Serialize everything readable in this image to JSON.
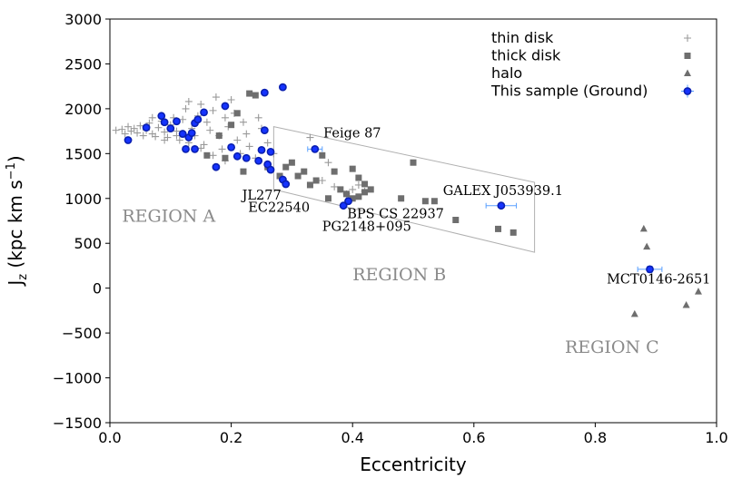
{
  "chart_data": {
    "type": "scatter",
    "xlabel": "Eccentricity",
    "ylabel": "J",
    "ylabel_sub": "z",
    "ylabel_units": " (kpc km s",
    "ylabel_exp": "−1",
    "ylabel_close": ")",
    "xlim": [
      0.0,
      1.0
    ],
    "ylim": [
      -1500,
      3000
    ],
    "xticks": [
      0.0,
      0.2,
      0.4,
      0.6,
      0.8,
      1.0
    ],
    "xtick_labels": [
      "0.0",
      "0.2",
      "0.4",
      "0.6",
      "0.8",
      "1.0"
    ],
    "yticks": [
      -1500,
      -1000,
      -500,
      0,
      500,
      1000,
      1500,
      2000,
      2500,
      3000
    ],
    "ytick_labels": [
      "−1500",
      "−1000",
      "−500",
      "0",
      "500",
      "1000",
      "1500",
      "2000",
      "2500",
      "3000"
    ],
    "grid": false,
    "legend_position": "top-right",
    "series": [
      {
        "name": "thin disk",
        "marker": "plus",
        "color": "#9a9a9a",
        "points": [
          [
            0.01,
            1760
          ],
          [
            0.02,
            1770
          ],
          [
            0.025,
            1720
          ],
          [
            0.03,
            1800
          ],
          [
            0.035,
            1750
          ],
          [
            0.04,
            1780
          ],
          [
            0.045,
            1730
          ],
          [
            0.05,
            1810
          ],
          [
            0.055,
            1700
          ],
          [
            0.06,
            1760
          ],
          [
            0.065,
            1840
          ],
          [
            0.07,
            1720
          ],
          [
            0.075,
            1690
          ],
          [
            0.08,
            1790
          ],
          [
            0.085,
            1860
          ],
          [
            0.09,
            1740
          ],
          [
            0.095,
            1680
          ],
          [
            0.1,
            1820
          ],
          [
            0.105,
            1900
          ],
          [
            0.11,
            1750
          ],
          [
            0.115,
            1650
          ],
          [
            0.12,
            1880
          ],
          [
            0.125,
            2000
          ],
          [
            0.13,
            2080
          ],
          [
            0.135,
            1780
          ],
          [
            0.14,
            1700
          ],
          [
            0.145,
            1920
          ],
          [
            0.15,
            2050
          ],
          [
            0.155,
            1600
          ],
          [
            0.16,
            1850
          ],
          [
            0.165,
            1760
          ],
          [
            0.17,
            1980
          ],
          [
            0.175,
            2130
          ],
          [
            0.18,
            1700
          ],
          [
            0.185,
            1550
          ],
          [
            0.19,
            1900
          ],
          [
            0.195,
            1800
          ],
          [
            0.2,
            2100
          ],
          [
            0.205,
            1950
          ],
          [
            0.21,
            1650
          ],
          [
            0.215,
            1500
          ],
          [
            0.22,
            1850
          ],
          [
            0.225,
            1720
          ],
          [
            0.23,
            1580
          ],
          [
            0.24,
            1450
          ],
          [
            0.245,
            1900
          ],
          [
            0.25,
            1780
          ],
          [
            0.26,
            1620
          ],
          [
            0.27,
            1500
          ],
          [
            0.11,
            1700
          ],
          [
            0.09,
            1650
          ],
          [
            0.07,
            1900
          ],
          [
            0.13,
            1620
          ],
          [
            0.15,
            1560
          ],
          [
            0.17,
            1480
          ],
          [
            0.19,
            1420
          ],
          [
            0.33,
            1680
          ],
          [
            0.35,
            1200
          ],
          [
            0.37,
            1130
          ],
          [
            0.4,
            1100
          ],
          [
            0.41,
            1150
          ],
          [
            0.36,
            1400
          ],
          [
            0.42,
            1080
          ],
          [
            0.39,
            1050
          ]
        ]
      },
      {
        "name": "thick disk",
        "marker": "square",
        "color": "#6e6e6e",
        "points": [
          [
            0.23,
            2170
          ],
          [
            0.24,
            2150
          ],
          [
            0.21,
            1950
          ],
          [
            0.2,
            1820
          ],
          [
            0.18,
            1700
          ],
          [
            0.16,
            1480
          ],
          [
            0.19,
            1450
          ],
          [
            0.22,
            1300
          ],
          [
            0.26,
            1350
          ],
          [
            0.28,
            1250
          ],
          [
            0.29,
            1350
          ],
          [
            0.3,
            1400
          ],
          [
            0.31,
            1250
          ],
          [
            0.32,
            1300
          ],
          [
            0.34,
            1200
          ],
          [
            0.35,
            1480
          ],
          [
            0.36,
            1000
          ],
          [
            0.38,
            1100
          ],
          [
            0.39,
            1050
          ],
          [
            0.4,
            1000
          ],
          [
            0.41,
            1020
          ],
          [
            0.42,
            1070
          ],
          [
            0.43,
            1100
          ],
          [
            0.4,
            1330
          ],
          [
            0.41,
            1230
          ],
          [
            0.42,
            1160
          ],
          [
            0.5,
            1400
          ],
          [
            0.48,
            1000
          ],
          [
            0.52,
            970
          ],
          [
            0.535,
            970
          ],
          [
            0.57,
            760
          ],
          [
            0.64,
            660
          ],
          [
            0.665,
            620
          ],
          [
            0.37,
            1300
          ],
          [
            0.33,
            1150
          ]
        ]
      },
      {
        "name": "halo",
        "marker": "triangle",
        "color": "#6e6e6e",
        "points": [
          [
            0.88,
            660
          ],
          [
            0.885,
            460
          ],
          [
            0.865,
            -290
          ],
          [
            0.95,
            -190
          ],
          [
            0.97,
            -40
          ]
        ]
      },
      {
        "name": "This sample (Ground)",
        "marker": "circle",
        "color": "#1533ff",
        "edge": "#0a1fb0",
        "points": [
          [
            0.03,
            1650
          ],
          [
            0.06,
            1790
          ],
          [
            0.085,
            1920
          ],
          [
            0.09,
            1850
          ],
          [
            0.1,
            1780
          ],
          [
            0.11,
            1860
          ],
          [
            0.12,
            1720
          ],
          [
            0.13,
            1680
          ],
          [
            0.135,
            1730
          ],
          [
            0.14,
            1840
          ],
          [
            0.145,
            1880
          ],
          [
            0.155,
            1960
          ],
          [
            0.125,
            1550
          ],
          [
            0.14,
            1550
          ],
          [
            0.175,
            1350
          ],
          [
            0.19,
            2030
          ],
          [
            0.2,
            1570
          ],
          [
            0.21,
            1470
          ],
          [
            0.225,
            1450
          ],
          [
            0.245,
            1420
          ],
          [
            0.25,
            1540
          ],
          [
            0.255,
            1760
          ],
          [
            0.26,
            1380
          ],
          [
            0.265,
            1520
          ],
          [
            0.265,
            1320
          ],
          [
            0.255,
            2180
          ],
          [
            0.285,
            2240
          ],
          [
            0.285,
            1210
          ],
          [
            0.29,
            1160
          ],
          [
            0.338,
            1550
          ],
          [
            0.385,
            920
          ],
          [
            0.393,
            970
          ],
          [
            0.645,
            920
          ],
          [
            0.89,
            210
          ]
        ],
        "xerr": [
          0.0,
          0.0,
          0.0,
          0.0,
          0.0,
          0.0,
          0.0,
          0.0,
          0.0,
          0.0,
          0.0,
          0.0,
          0.0,
          0.0,
          0.0,
          0.0,
          0.0,
          0.0,
          0.0,
          0.0,
          0.0,
          0.0,
          0.0,
          0.0,
          0.0,
          0.0,
          0.0,
          0.0,
          0.0,
          0.012,
          0.0,
          0.0,
          0.025,
          0.02
        ],
        "yerr": [
          0,
          0,
          0,
          0,
          0,
          0,
          0,
          0,
          0,
          0,
          0,
          0,
          0,
          0,
          0,
          0,
          0,
          0,
          0,
          0,
          0,
          0,
          0,
          0,
          0,
          0,
          0,
          0,
          0,
          0,
          0,
          0,
          0,
          35
        ]
      }
    ],
    "legend": [
      {
        "name": "thin disk",
        "marker": "plus"
      },
      {
        "name": "thick disk",
        "marker": "square"
      },
      {
        "name": "halo",
        "marker": "triangle"
      },
      {
        "name": "This sample (Ground)",
        "marker": "circle"
      }
    ],
    "annotations": [
      {
        "text": "Feige 87",
        "x": 0.352,
        "y": 1680,
        "anchor": "start"
      },
      {
        "text": "JL277",
        "x": 0.218,
        "y": 990,
        "anchor": "start"
      },
      {
        "text": "EC22540",
        "x": 0.228,
        "y": 850,
        "anchor": "start"
      },
      {
        "text": "BPS CS 22937",
        "x": 0.391,
        "y": 780,
        "anchor": "start"
      },
      {
        "text": "PG2148+095",
        "x": 0.35,
        "y": 640,
        "anchor": "start"
      },
      {
        "text": "GALEX J053939.1",
        "x": 0.549,
        "y": 1040,
        "anchor": "start"
      },
      {
        "text": "MCT0146-2651",
        "x": 0.819,
        "y": 50,
        "anchor": "start"
      }
    ],
    "regions": [
      {
        "text": "REGION A",
        "x": 0.02,
        "y": 740
      },
      {
        "text": "REGION B",
        "x": 0.4,
        "y": 90
      },
      {
        "text": "REGION C",
        "x": 0.75,
        "y": -720
      }
    ],
    "region_b_polygon": [
      [
        0.27,
        1800
      ],
      [
        0.7,
        1180
      ],
      [
        0.7,
        400
      ],
      [
        0.27,
        1100
      ]
    ]
  }
}
